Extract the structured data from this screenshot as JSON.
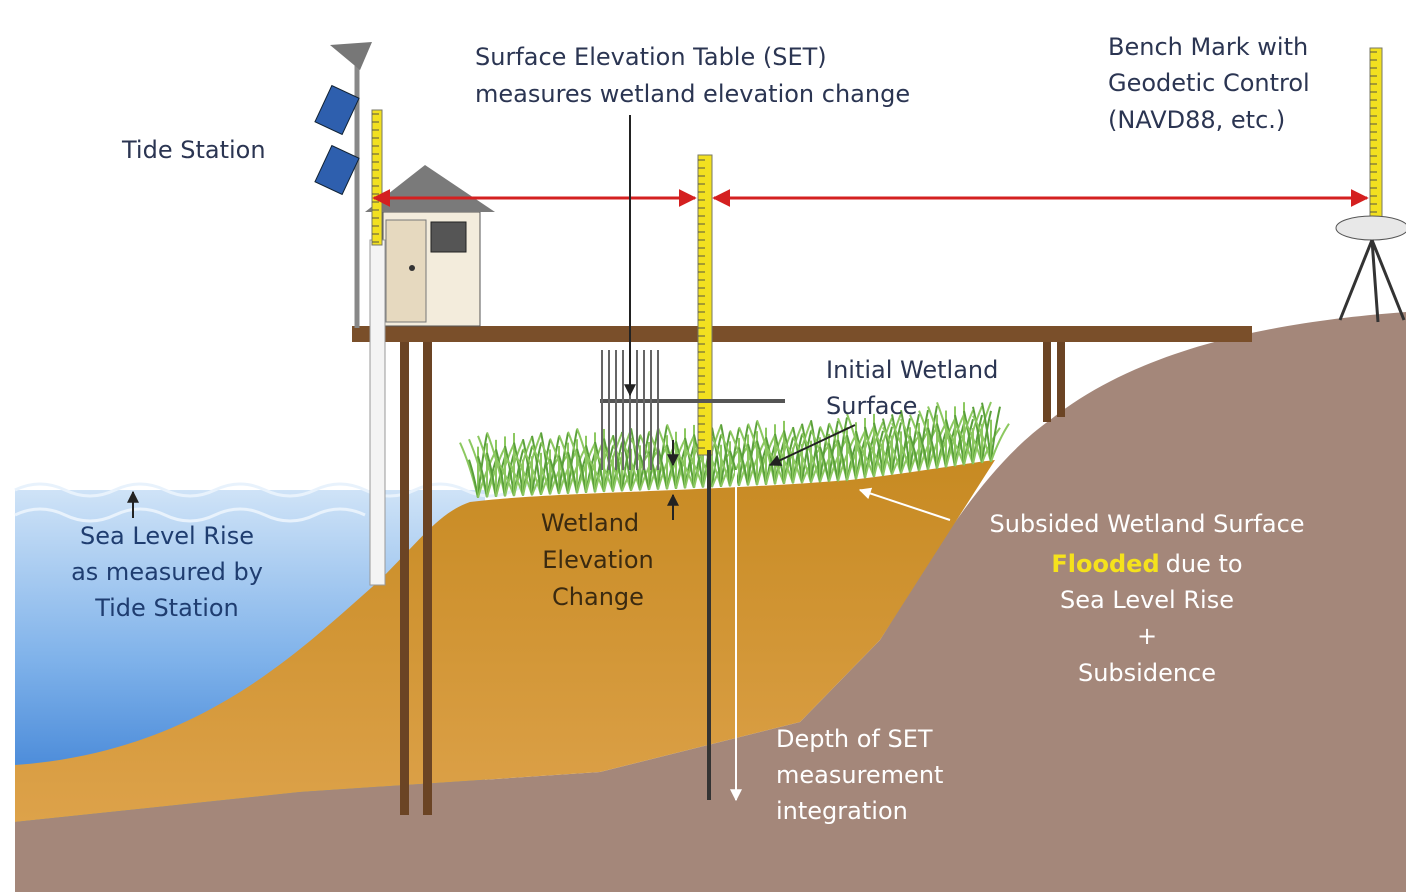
{
  "tide_station": {
    "lines": [
      "Tide Station"
    ]
  },
  "set_label": {
    "lines": [
      "Surface Elevation Table (SET)",
      "measures wetland elevation change"
    ]
  },
  "bench_mark": {
    "lines": [
      "Bench Mark with",
      "Geodetic Control",
      "(NAVD88, etc.)"
    ]
  },
  "initial_wetland": {
    "lines": [
      "Initial Wetland",
      "Surface"
    ]
  },
  "sea_level_rise": {
    "lines": [
      "Sea Level Rise",
      "as measured by",
      "Tide Station"
    ]
  },
  "wetland_change": {
    "lines": [
      "Wetland",
      "Elevation",
      "Change"
    ]
  },
  "subsided": {
    "lines": [
      "Subsided Wetland Surface",
      "Sea Level Rise",
      "+",
      "Subsidence"
    ],
    "flooded_line": {
      "highlight": "Flooded",
      "rest": "due to"
    }
  },
  "depth": {
    "lines": [
      "Depth of SET",
      "measurement",
      "integration"
    ]
  }
}
